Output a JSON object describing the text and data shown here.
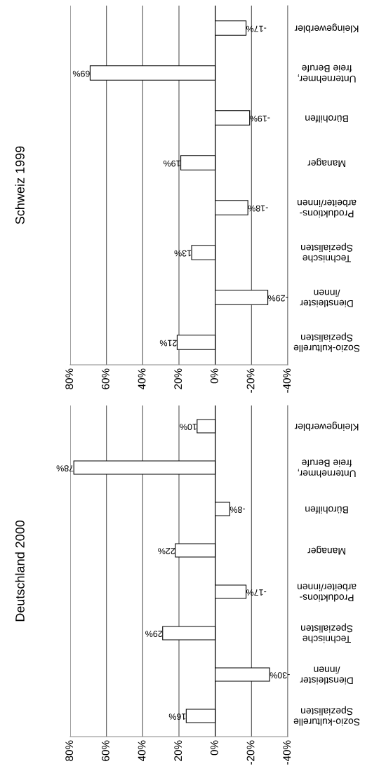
{
  "chart_data": [
    {
      "type": "bar",
      "orientation": "horizontal",
      "title": "Schweiz 1999",
      "categories": [
        "Kleingewerbler",
        "Unternehmer,\nfreie Berufe",
        "Bürohilfen",
        "Manager",
        "Produktions-\narbeiter/innen",
        "Technische\nSpezialisten",
        "Dienstleister\n/innen",
        "Sozio-kulturelle\nSpezialisten"
      ],
      "values": [
        -17,
        69,
        -19,
        19,
        -18,
        13,
        -29,
        21
      ],
      "value_labels": [
        "-17%",
        "69%",
        "-19%",
        "19%",
        "-18%",
        "13%",
        "-29%",
        "21%"
      ],
      "color": "#ffffff",
      "xlim": [
        80,
        -40
      ],
      "xticks": [
        {
          "value": 80,
          "label": "80%"
        },
        {
          "value": 60,
          "label": "60%"
        },
        {
          "value": 40,
          "label": "40%"
        },
        {
          "value": 20,
          "label": "20%"
        },
        {
          "value": 0,
          "label": "0%"
        },
        {
          "value": -20,
          "label": "-20%"
        },
        {
          "value": -40,
          "label": "-40%"
        }
      ],
      "grid": "x"
    },
    {
      "type": "bar",
      "orientation": "horizontal",
      "title": "Deutschland 2000",
      "categories": [
        "Kleingewerbler",
        "Unternehmer,\nfreie Berufe",
        "Bürohilfen",
        "Manager",
        "Produktions-\narbeiter/innen",
        "Technische\nSpezialisten",
        "Dienstleister\n/innen",
        "Sozio-kulturelle\nSpezialisten"
      ],
      "values": [
        10,
        78,
        -8,
        22,
        -17,
        29,
        -30,
        16
      ],
      "value_labels": [
        "10%",
        "78%",
        "-8%",
        "22%",
        "-17%",
        "29%",
        "-30%",
        "16%"
      ],
      "color": "#ffffff",
      "xlim": [
        80,
        -40
      ],
      "xticks": [
        {
          "value": 80,
          "label": "80%"
        },
        {
          "value": 60,
          "label": "60%"
        },
        {
          "value": 40,
          "label": "40%"
        },
        {
          "value": 20,
          "label": "20%"
        },
        {
          "value": 0,
          "label": "0%"
        },
        {
          "value": -20,
          "label": "-20%"
        },
        {
          "value": -40,
          "label": "-40%"
        }
      ],
      "grid": "x"
    }
  ]
}
